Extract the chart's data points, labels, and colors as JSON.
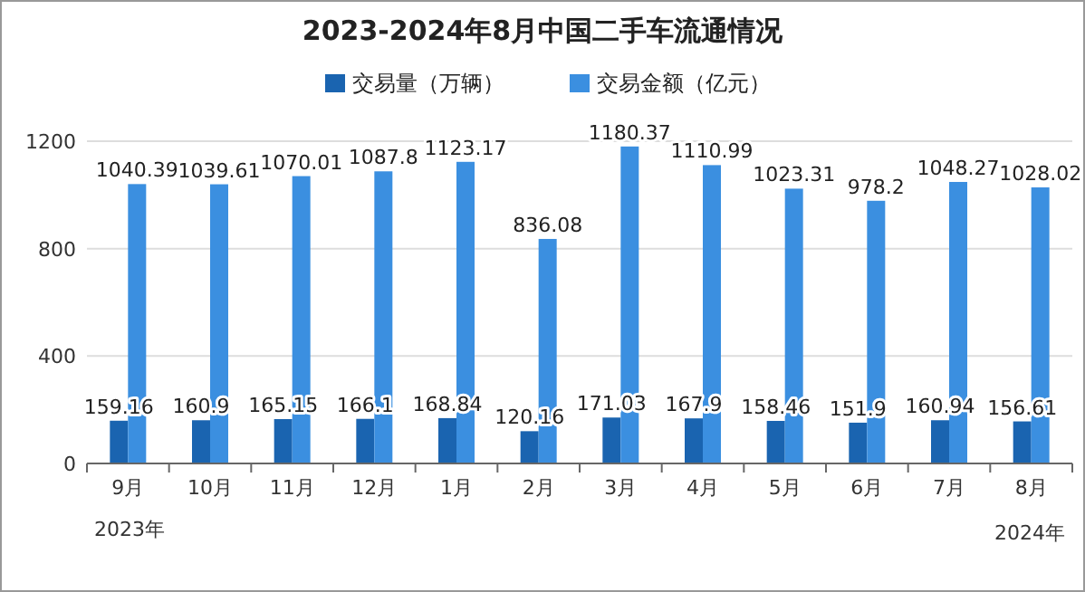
{
  "chart_data": {
    "type": "bar",
    "title": "2023-2024年8月中国二手车流通情况",
    "categories": [
      "9月",
      "10月",
      "11月",
      "12月",
      "1月",
      "2月",
      "3月",
      "4月",
      "5月",
      "6月",
      "7月",
      "8月"
    ],
    "series": [
      {
        "name": "交易量（万辆）",
        "color": "#1a64b0",
        "values": [
          159.16,
          160.9,
          165.15,
          166.1,
          168.84,
          120.16,
          171.03,
          167.9,
          158.46,
          151.9,
          160.94,
          156.61
        ]
      },
      {
        "name": "交易金额（亿元）",
        "color": "#3b8fe0",
        "values": [
          1040.39,
          1039.61,
          1070.01,
          1087.8,
          1123.17,
          836.08,
          1180.37,
          1110.99,
          1023.31,
          978.2,
          1048.27,
          1028.02
        ]
      }
    ],
    "ylim": [
      0,
      1200
    ],
    "yticks": [
      0,
      400,
      800,
      1200
    ],
    "grid": "y",
    "legend": "top",
    "data_labels": true,
    "annotations": [
      "2023年",
      "2024年"
    ]
  }
}
